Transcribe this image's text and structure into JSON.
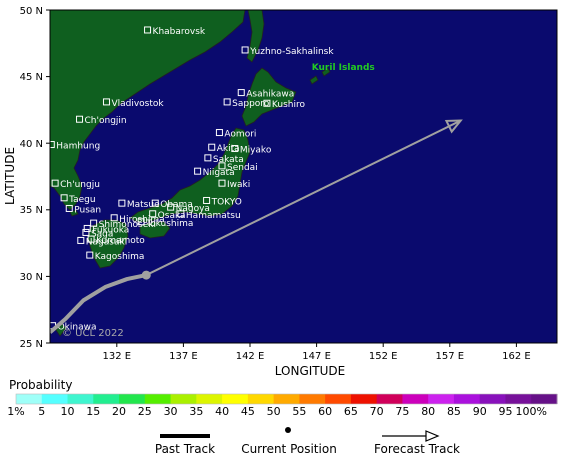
{
  "map": {
    "ylabel": "LATITUDE",
    "xlabel": "LONGITUDE",
    "watermark": "© UCL 2022",
    "lat_ticks": [
      "50 N",
      "45 N",
      "40 N",
      "35 N",
      "30 N",
      "25 N"
    ],
    "lon_ticks": [
      "132 E",
      "137 E",
      "142 E",
      "147 E",
      "152 E",
      "157 E",
      "162 E"
    ],
    "lon_range": [
      127.5,
      167
    ],
    "lat_range": [
      25,
      50
    ],
    "colors": {
      "ocean": "#0a0a6e",
      "land": "#0f5f1f",
      "track": "#a0a0a0",
      "labels": "#ffffff",
      "highlight": "#22cc22"
    },
    "cities": [
      {
        "name": "Khabarovsk",
        "lon": 135.1,
        "lat": 48.5
      },
      {
        "name": "Yuzhno-Sakhalinsk",
        "lon": 142.7,
        "lat": 47.0
      },
      {
        "name": "Kuril Islands",
        "lon": 147.5,
        "lat": 45.8
      },
      {
        "name": "Vladivostok",
        "lon": 131.9,
        "lat": 43.1
      },
      {
        "name": "Asahikawa",
        "lon": 142.4,
        "lat": 43.8
      },
      {
        "name": "Kushiro",
        "lon": 144.4,
        "lat": 43.0
      },
      {
        "name": "Sapporo",
        "lon": 141.3,
        "lat": 43.1
      },
      {
        "name": "Ch'ongjin",
        "lon": 129.8,
        "lat": 41.8
      },
      {
        "name": "Aomori",
        "lon": 140.7,
        "lat": 40.8
      },
      {
        "name": "Akita",
        "lon": 140.1,
        "lat": 39.7
      },
      {
        "name": "Hamhung",
        "lon": 127.6,
        "lat": 39.9
      },
      {
        "name": "Miyako",
        "lon": 141.9,
        "lat": 39.6
      },
      {
        "name": "Sakata",
        "lon": 139.8,
        "lat": 38.9
      },
      {
        "name": "Sendai",
        "lon": 140.9,
        "lat": 38.3
      },
      {
        "name": "Niigata",
        "lon": 139.0,
        "lat": 37.9
      },
      {
        "name": "Ch'ungju",
        "lon": 127.9,
        "lat": 37.0
      },
      {
        "name": "Iwaki",
        "lon": 140.9,
        "lat": 37.0
      },
      {
        "name": "Nagoya",
        "lon": 136.9,
        "lat": 35.2
      },
      {
        "name": "Taegu",
        "lon": 128.6,
        "lat": 35.9
      },
      {
        "name": "Pusan",
        "lon": 129.0,
        "lat": 35.1
      },
      {
        "name": "Osaka",
        "lon": 135.5,
        "lat": 34.7
      },
      {
        "name": "Fukuoka",
        "lon": 130.4,
        "lat": 33.6
      },
      {
        "name": "Shimonoseki",
        "lon": 130.9,
        "lat": 34.0
      },
      {
        "name": "TOKYO",
        "lon": 139.7,
        "lat": 35.7
      },
      {
        "name": "Hamamatsu",
        "lon": 137.7,
        "lat": 34.7
      },
      {
        "name": "Obama",
        "lon": 135.7,
        "lat": 35.5
      },
      {
        "name": "Saga",
        "lon": 130.3,
        "lat": 33.3
      },
      {
        "name": "Hiroshima",
        "lon": 132.5,
        "lat": 34.4
      },
      {
        "name": "Kumamoto",
        "lon": 130.7,
        "lat": 32.8
      },
      {
        "name": "Matsue",
        "lon": 133.1,
        "lat": 35.5
      },
      {
        "name": "Tokushima",
        "lon": 134.6,
        "lat": 34.1
      },
      {
        "name": "Nagasaki",
        "lon": 129.9,
        "lat": 32.7
      },
      {
        "name": "Kagoshima",
        "lon": 130.6,
        "lat": 31.6
      },
      {
        "name": "Okinawa",
        "lon": 127.7,
        "lat": 26.3
      }
    ],
    "past_track": [
      [
        127.5,
        25.8
      ],
      [
        128.7,
        26.8
      ],
      [
        130.1,
        28.2
      ],
      [
        131.8,
        29.2
      ],
      [
        133.5,
        29.8
      ],
      [
        135.0,
        30.1
      ]
    ],
    "current_position": [
      135.0,
      30.1
    ],
    "forecast_track": [
      [
        135.0,
        30.1
      ],
      [
        159.5,
        41.7
      ]
    ]
  },
  "legend": {
    "title": "Probability",
    "items": [
      {
        "label": "1%",
        "color": "#9ffff8"
      },
      {
        "label": "5",
        "color": "#55ffff"
      },
      {
        "label": "10",
        "color": "#3ff5cf"
      },
      {
        "label": "15",
        "color": "#22ee90"
      },
      {
        "label": "20",
        "color": "#22e64d"
      },
      {
        "label": "25",
        "color": "#55ee00"
      },
      {
        "label": "30",
        "color": "#aaf000"
      },
      {
        "label": "35",
        "color": "#ddf500"
      },
      {
        "label": "40",
        "color": "#ffff00"
      },
      {
        "label": "45",
        "color": "#ffd800"
      },
      {
        "label": "50",
        "color": "#ffaa00"
      },
      {
        "label": "55",
        "color": "#ff7a00"
      },
      {
        "label": "60",
        "color": "#ff4a00"
      },
      {
        "label": "65",
        "color": "#ee1100"
      },
      {
        "label": "70",
        "color": "#d0005a"
      },
      {
        "label": "75",
        "color": "#cc00bb"
      },
      {
        "label": "80",
        "color": "#cc22ee"
      },
      {
        "label": "85",
        "color": "#aa11dd"
      },
      {
        "label": "90",
        "color": "#8811bb"
      },
      {
        "label": "95",
        "color": "#77119a"
      },
      {
        "label": "100%",
        "color": "#661188"
      }
    ],
    "past_track_label": "Past Track",
    "current_position_label": "Current Position",
    "forecast_track_label": "Forecast Track"
  }
}
